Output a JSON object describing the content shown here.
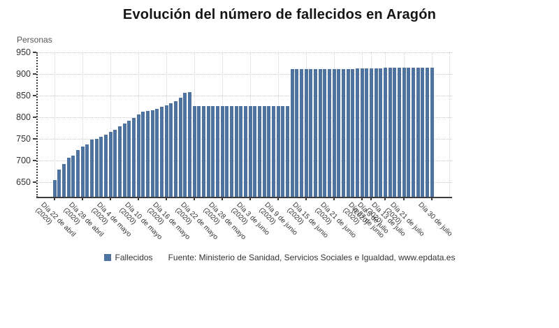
{
  "title": "Evolución del número de fallecidos en Aragón",
  "y_axis_label": "Personas",
  "legend": {
    "label": "Fallecidos",
    "color": "#4d739e"
  },
  "source": "Fuente: Ministerio de Sanidad, Servicios Sociales e Igualdad, www.epdata.es",
  "chart_data": {
    "type": "bar",
    "title": "Evolución del número de fallecidos en Aragón",
    "ylabel": "Personas",
    "series_name": "Fallecidos",
    "bar_color": "#4d739e",
    "grid": "dotted",
    "legend_position": "bottom",
    "ylim": [
      615,
      950
    ],
    "yticks": [
      650,
      700,
      750,
      800,
      850,
      900,
      950
    ],
    "values": [
      655,
      680,
      693,
      707,
      711,
      725,
      733,
      737,
      748,
      751,
      755,
      760,
      767,
      772,
      779,
      786,
      792,
      798,
      806,
      813,
      815,
      817,
      819,
      824,
      827,
      833,
      838,
      846,
      856,
      858,
      826,
      826,
      826,
      826,
      826,
      826,
      826,
      826,
      826,
      826,
      826,
      826,
      826,
      826,
      826,
      826,
      826,
      826,
      826,
      826,
      826,
      911,
      911,
      911,
      911,
      911,
      911,
      911,
      911,
      912,
      912,
      912,
      912,
      912,
      912,
      913,
      913,
      913,
      913,
      913,
      913,
      914,
      914,
      914,
      914,
      914,
      914,
      915,
      915,
      915,
      915,
      915
    ],
    "tick_labels": [
      {
        "index": 1,
        "label": "Día 22 de abril",
        "year": "(2020)"
      },
      {
        "index": 7,
        "label": "Día 28 de abril",
        "year": "(2020)"
      },
      {
        "index": 13,
        "label": "Día 4 de mayo",
        "year": "(2020)"
      },
      {
        "index": 19,
        "label": "Día 10 de mayo",
        "year": "(2020)"
      },
      {
        "index": 25,
        "label": "Día 16 de mayo",
        "year": "(2020)"
      },
      {
        "index": 31,
        "label": "Día 22 de mayo",
        "year": "(2020)"
      },
      {
        "index": 37,
        "label": "Día 28 de mayo",
        "year": "(2020)"
      },
      {
        "index": 43,
        "label": "Día 3 de junio",
        "year": "(2020)"
      },
      {
        "index": 49,
        "label": "Día 9 de junio",
        "year": "(2020)"
      },
      {
        "index": 55,
        "label": "Día 15 de junio",
        "year": "(2020)"
      },
      {
        "index": 61,
        "label": "Día 21 de junio",
        "year": "(2020)"
      },
      {
        "index": 67,
        "label": "Día 27 de junio",
        "year": "(2020)"
      },
      {
        "index": 69,
        "label": "Día 3 de julio",
        "year": "(2020)"
      },
      {
        "index": 72,
        "label": "Día 13 de julio",
        "year": "(2020)"
      },
      {
        "index": 76,
        "label": "Día 21 de julio",
        "year": "(2020)"
      },
      {
        "index": 82,
        "label": "Día 30 de julio",
        "year": ""
      }
    ]
  }
}
